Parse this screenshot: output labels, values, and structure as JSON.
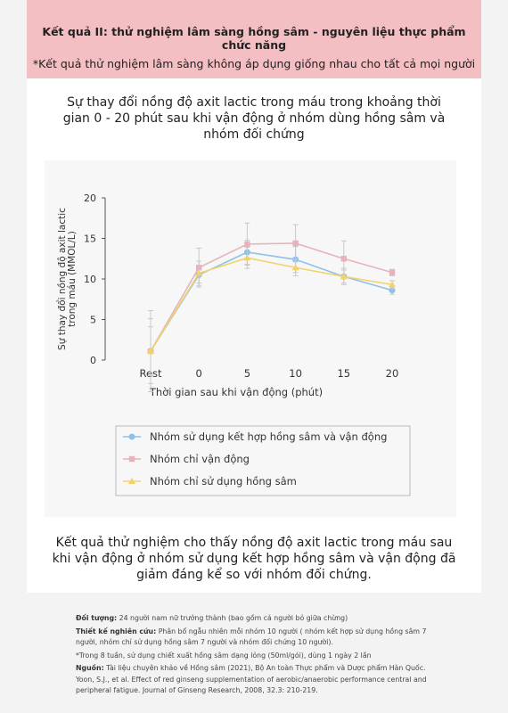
{
  "header": {
    "title": "Kết quả II: thử nghiệm lâm sàng hồng sâm - nguyên liệu thực phẩm chức năng",
    "subtitle": "*Kết quả thử nghiệm lâm sàng không áp dụng giống nhau cho tất cả mọi người"
  },
  "heading": "Sự thay đổi nồng độ axit lactic trong máu trong khoảng thời gian 0 - 20 phút sau khi vận động ở nhóm dùng hồng sâm và nhóm đối chứng",
  "chart_data": {
    "type": "line",
    "ylabel": [
      "Sự thay đổi nồng độ axit lactic",
      "trong máu (MMOL/L)"
    ],
    "xlabel": "Thời gian sau khi vận động (phút)",
    "categories": [
      "Rest",
      "0",
      "5",
      "10",
      "15",
      "20"
    ],
    "ylim": [
      0,
      20
    ],
    "yticks": [
      0,
      5,
      10,
      15,
      20
    ],
    "grid": false,
    "series": [
      {
        "name": "Nhóm sử dụng kết hợp hồng sâm và vận động",
        "color": "#8fc1e8",
        "marker": "circle",
        "values": [
          1.1,
          10.5,
          13.3,
          12.4,
          10.3,
          8.6
        ],
        "errors": [
          5,
          1,
          1.5,
          1.6,
          1,
          0.5
        ]
      },
      {
        "name": "Nhóm chỉ vận động",
        "color": "#e6b3bd",
        "marker": "square",
        "values": [
          1.1,
          11.4,
          14.3,
          14.4,
          12.5,
          10.8
        ],
        "errors": [
          4,
          2.4,
          2.6,
          2.3,
          2.2,
          0.4
        ]
      },
      {
        "name": "Nhóm chỉ sử dụng hồng sâm",
        "color": "#f2d36a",
        "marker": "triangle",
        "values": [
          1.1,
          10.7,
          12.6,
          11.4,
          10.3,
          9.3
        ],
        "errors": [
          3,
          1.5,
          1.3,
          1,
          0.8,
          0.5
        ]
      }
    ]
  },
  "conclusion": "Kết quả thử nghiệm cho thấy nồng độ axit lactic trong máu sau khi vận động ở nhóm sử dụng kết hợp hồng sâm và vận động đã giảm đáng kể  so với nhóm đối chứng.",
  "footnotes": [
    {
      "label": "Đối tượng:",
      "text": "24 người nam nữ trưởng thành (bao gồm cả người bỏ giữa chừng)"
    },
    {
      "label": "Thiết kế nghiên cứu:",
      "text": "Phân bổ ngẫu nhiên mỗi nhóm 10 người ( nhóm kết hợp sử dụng hồng sâm 7 người, nhóm chỉ sử dụng hồng sâm 7 người  và nhóm đối chứng 10 người)."
    },
    {
      "text": "*Trong 8 tuần, sử dụng chiết xuất hồng sâm dạng lỏng (50ml/gói), dùng 1 ngày 2 lần"
    },
    {
      "label": "Nguồn:",
      "text": "Tài liệu chuyên khảo về Hồng sâm (2021), Bộ An toàn Thực phẩm và Dược phẩm Hàn Quốc. Yoon, S.J., et al. Effect of red ginseng supplementation of aerobic/anaerobic performance central and peripheral fatigue. Journal of Ginseng Research, 2008, 32.3: 210-219."
    }
  ]
}
